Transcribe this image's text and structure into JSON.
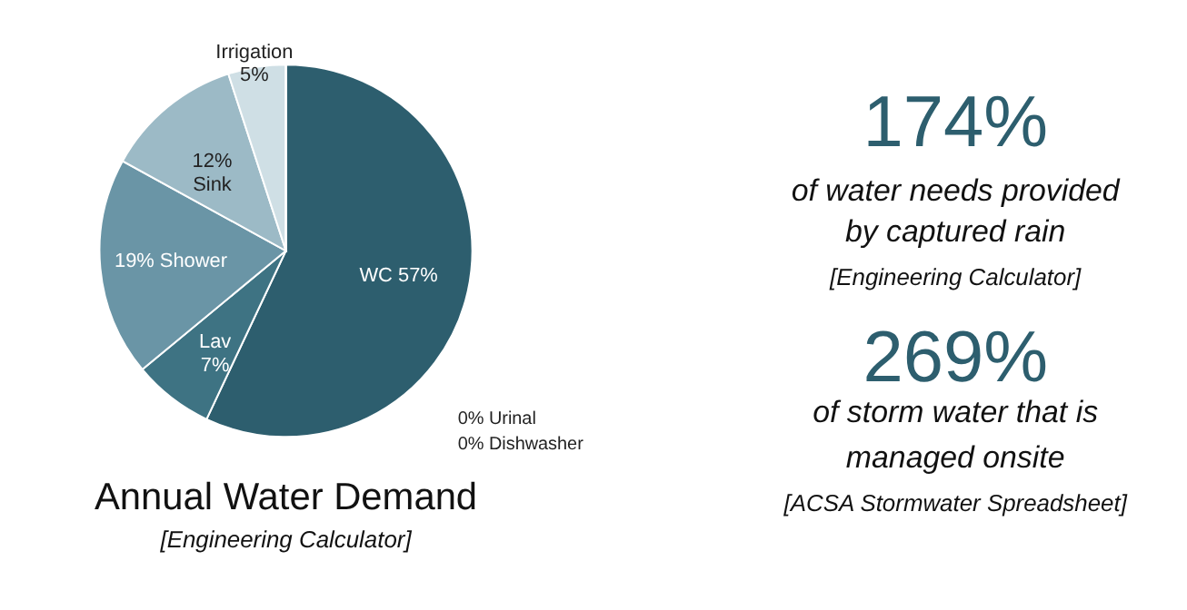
{
  "chart_data": [
    {
      "type": "pie",
      "title": "Annual Water Demand",
      "subtitle": "[Engineering Calculator]",
      "categories": [
        "WC",
        "Lav",
        "Shower",
        "Sink",
        "Irrigation",
        "Urinal",
        "Dishwasher"
      ],
      "values": [
        57,
        7,
        19,
        12,
        5,
        0,
        0
      ],
      "colors": [
        "#2d5e6e",
        "#3e7383",
        "#6a95a6",
        "#9cbac6",
        "#cfdfe5",
        "#2d5e6e",
        "#2d5e6e"
      ],
      "value_labels": [
        "57%",
        "7%",
        "19%",
        "12%",
        "5%",
        "0%",
        "0%"
      ]
    },
    {
      "type": "other",
      "annotations": [
        "174%",
        "of water needs provided",
        "by captured rain",
        "[Engineering Calculator]",
        "269%",
        "of storm water that is",
        "managed onsite",
        "[ACSA Stormwater Spreadsheet]"
      ]
    }
  ]
}
